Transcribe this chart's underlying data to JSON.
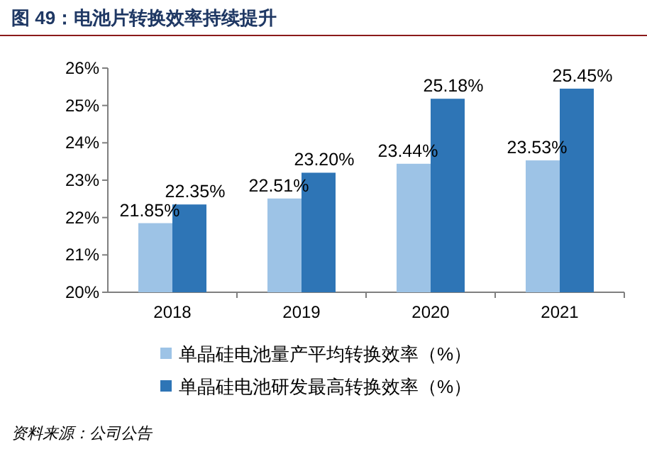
{
  "chart_data": {
    "type": "bar",
    "title": "图 49：电池片转换效率持续提升",
    "categories": [
      "2018",
      "2019",
      "2020",
      "2021"
    ],
    "series": [
      {
        "name": "单晶硅电池量产平均转换效率（%）",
        "color": "#9dc3e6",
        "values": [
          21.85,
          22.51,
          23.44,
          23.53
        ],
        "value_labels": [
          "21.85%",
          "22.51%",
          "23.44%",
          "23.53%"
        ]
      },
      {
        "name": "单晶硅电池研发最高转换效率（%）",
        "color": "#2e75b6",
        "values": [
          22.35,
          23.2,
          25.18,
          25.45
        ],
        "value_labels": [
          "22.35%",
          "23.20%",
          "25.18%",
          "25.45%"
        ]
      }
    ],
    "ylim": [
      20,
      26
    ],
    "yticks": [
      {
        "value": 20,
        "label": "20%"
      },
      {
        "value": 21,
        "label": "21%"
      },
      {
        "value": 22,
        "label": "22%"
      },
      {
        "value": 23,
        "label": "23%"
      },
      {
        "value": 24,
        "label": "24%"
      },
      {
        "value": 25,
        "label": "25%"
      },
      {
        "value": 26,
        "label": "26%"
      }
    ],
    "legend": "bottom",
    "annotations": [
      "资料来源：公司公告"
    ]
  }
}
